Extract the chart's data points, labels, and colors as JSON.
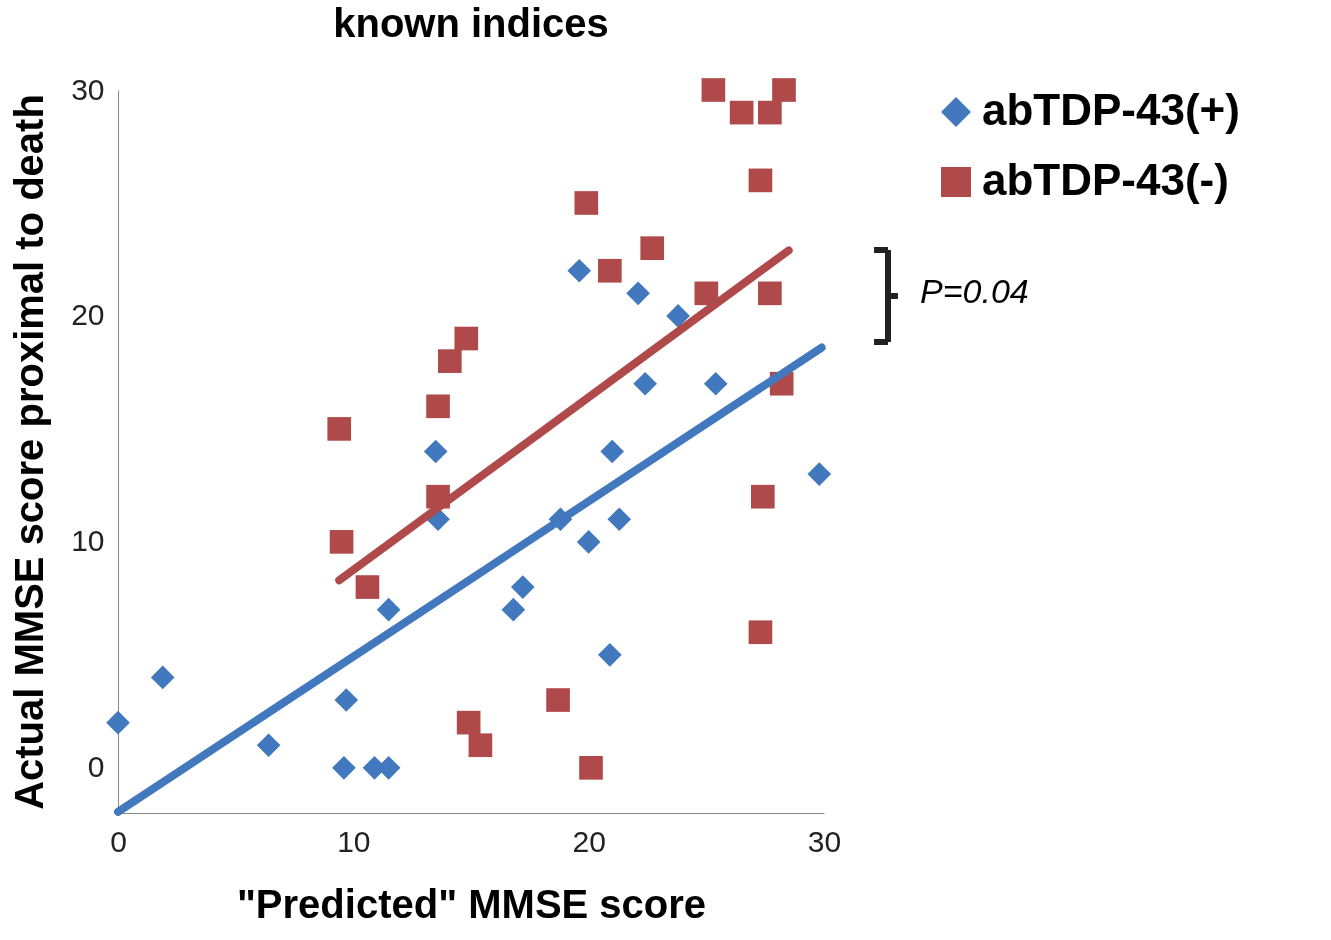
{
  "chart_data": {
    "type": "scatter",
    "title": "known indices",
    "xlabel": "\"Predicted\" MMSE score",
    "ylabel": "Actual MMSE score proximal to death",
    "xlim": [
      0,
      30
    ],
    "xticks": [
      0,
      10,
      20,
      30
    ],
    "ylim": [
      -2,
      30
    ],
    "yticks": [
      0,
      10,
      20,
      30
    ],
    "grid": false,
    "legend": "right",
    "annotations": [
      "P=0.04"
    ],
    "series": [
      {
        "name": "abTDP-43(+)",
        "color": "#4178be",
        "marker": "diamond",
        "x": [
          0,
          1.9,
          6.4,
          9.7,
          9.6,
          10.9,
          11.5,
          11.5,
          13.5,
          13.6,
          15.0,
          16.8,
          17.2,
          18.8,
          20.0,
          19.6,
          21.0,
          21.3,
          20.9,
          22.1,
          22.4,
          23.8,
          25.4,
          29.8
        ],
        "values": [
          2,
          4,
          1,
          3,
          0,
          0,
          0,
          7,
          14,
          11,
          null,
          7,
          8,
          11,
          10,
          22,
          14,
          11,
          5,
          21,
          17,
          20,
          17,
          13
        ]
      },
      {
        "name": "abTDP-43(-)",
        "color": "#b04a4a",
        "marker": "square",
        "x": [
          9.4,
          9.5,
          10.6,
          13.6,
          13.6,
          14.1,
          14.8,
          14.9,
          15.4,
          18.7,
          19.9,
          20.1,
          20.9,
          22.7,
          25.0,
          25.3,
          26.5,
          27.3,
          27.7,
          27.7,
          27.4,
          27.3,
          28.2,
          28.3
        ],
        "values": [
          15,
          10,
          8,
          16,
          12,
          18,
          19,
          2,
          1,
          3,
          25,
          0,
          22,
          23,
          21,
          30,
          29,
          26,
          29,
          21,
          12,
          6,
          17,
          30
        ]
      },
      {
        "type": "line",
        "color": "#4178be",
        "x": [
          0,
          29.9
        ],
        "values": [
          -1.95,
          18.6
        ]
      },
      {
        "type": "line",
        "color": "#b04a4a",
        "x": [
          9.4,
          28.5
        ],
        "values": [
          8.3,
          22.9
        ]
      }
    ]
  }
}
